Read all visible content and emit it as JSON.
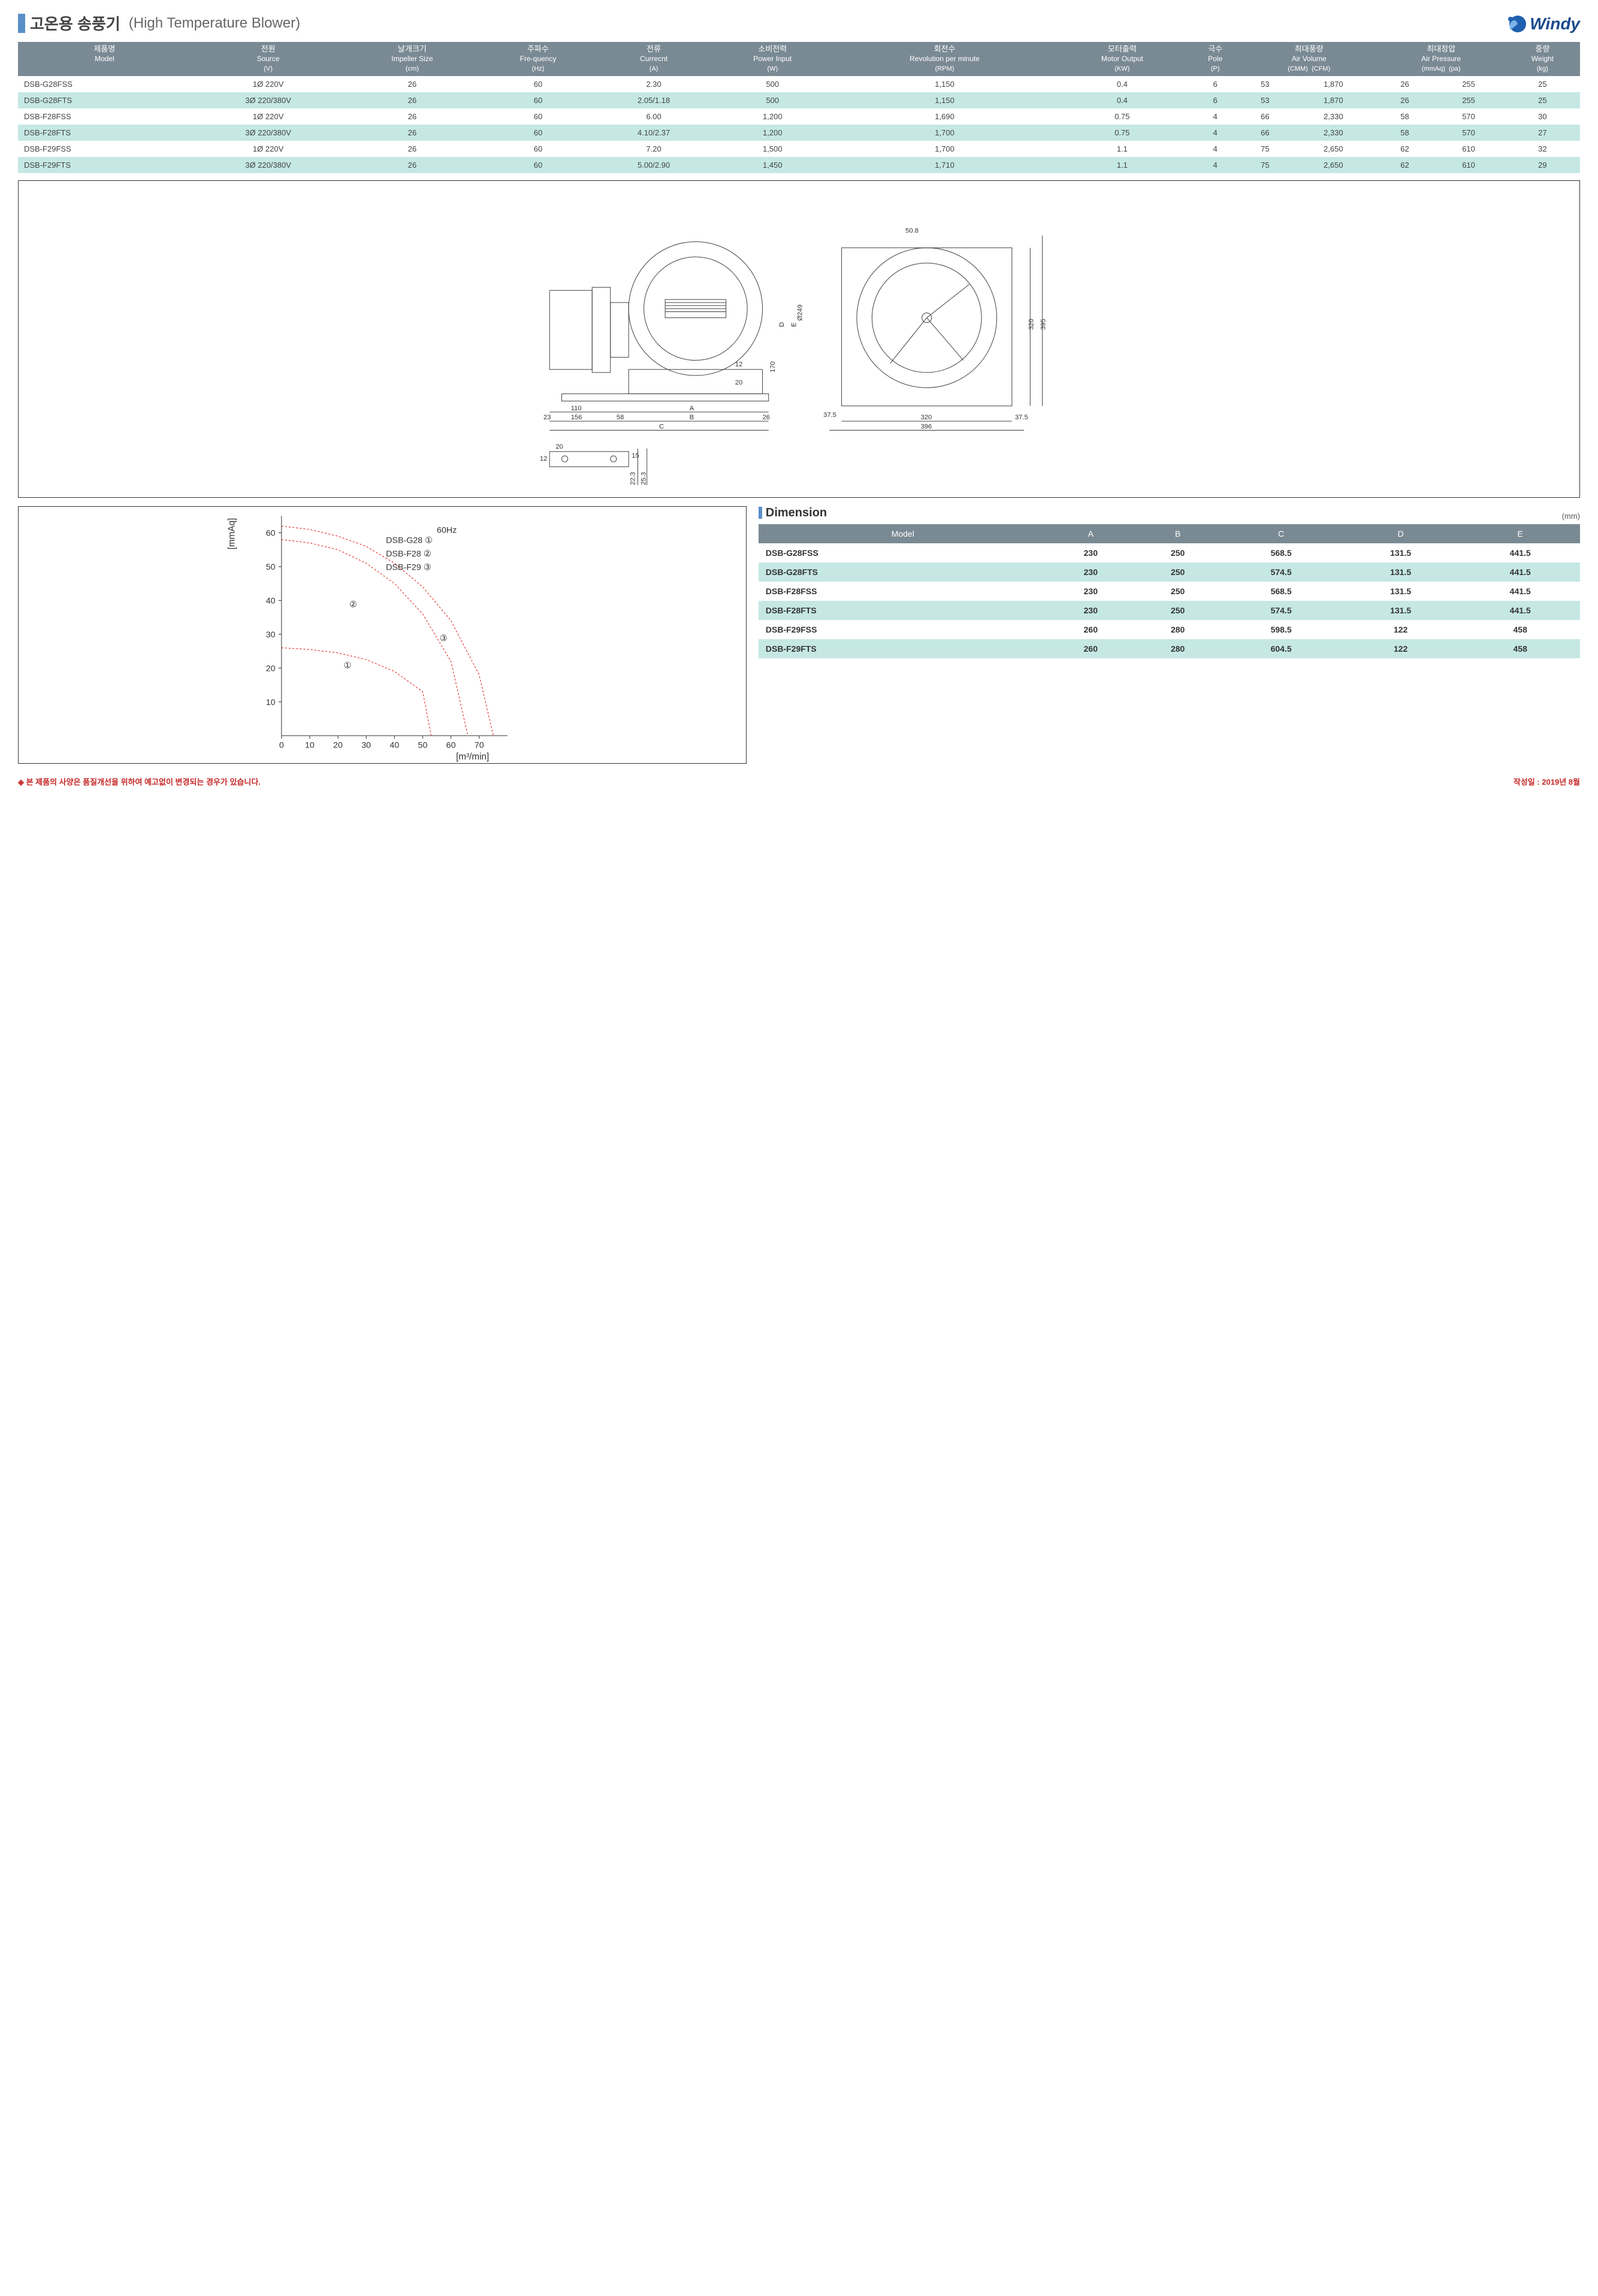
{
  "title": {
    "kr": "고온용 송풍기",
    "en": "(High Temperature Blower)"
  },
  "logo": {
    "text": "Windy",
    "accent_color": "#1a4b8c",
    "swirl_color": "#2060b0"
  },
  "spec_table": {
    "header_bg": "#7a8a94",
    "row_alt_bg": "#c5e8e4",
    "columns": [
      {
        "kr": "제품명",
        "en": "Model",
        "unit": ""
      },
      {
        "kr": "전원",
        "en": "Source",
        "unit": "(V)"
      },
      {
        "kr": "날개크기",
        "en": "Impeller Size",
        "unit": "(cm)"
      },
      {
        "kr": "주파수",
        "en": "Fre-quency",
        "unit": "(Hz)"
      },
      {
        "kr": "전류",
        "en": "Currecnt",
        "unit": "(A)"
      },
      {
        "kr": "소비전력",
        "en": "Power Input",
        "unit": "(W)"
      },
      {
        "kr": "회전수",
        "en": "Revolution per minute",
        "unit": "(RPM)"
      },
      {
        "kr": "모터출력",
        "en": "Motor Output",
        "unit": "(KW)"
      },
      {
        "kr": "극수",
        "en": "Pole",
        "unit": "(P)"
      },
      {
        "kr": "최대풍량",
        "en": "Air Volume",
        "sub": [
          "(CMM)",
          "(CFM)"
        ]
      },
      {
        "kr": "최대정압",
        "en": "Air Pressure",
        "sub": [
          "(mmAq)",
          "(pa)"
        ]
      },
      {
        "kr": "중량",
        "en": "Weight",
        "unit": "(kg)"
      }
    ],
    "rows": [
      [
        "DSB-G28FSS",
        "1Ø 220V",
        "26",
        "60",
        "2.30",
        "500",
        "1,150",
        "0.4",
        "6",
        "53",
        "1,870",
        "26",
        "255",
        "25"
      ],
      [
        "DSB-G28FTS",
        "3Ø 220/380V",
        "26",
        "60",
        "2.05/1.18",
        "500",
        "1,150",
        "0.4",
        "6",
        "53",
        "1,870",
        "26",
        "255",
        "25"
      ],
      [
        "DSB-F28FSS",
        "1Ø 220V",
        "26",
        "60",
        "6.00",
        "1,200",
        "1,690",
        "0.75",
        "4",
        "66",
        "2,330",
        "58",
        "570",
        "30"
      ],
      [
        "DSB-F28FTS",
        "3Ø 220/380V",
        "26",
        "60",
        "4.10/2.37",
        "1,200",
        "1,700",
        "0.75",
        "4",
        "66",
        "2,330",
        "58",
        "570",
        "27"
      ],
      [
        "DSB-F29FSS",
        "1Ø 220V",
        "26",
        "60",
        "7.20",
        "1,500",
        "1,700",
        "1.1",
        "4",
        "75",
        "2,650",
        "62",
        "610",
        "32"
      ],
      [
        "DSB-F29FTS",
        "3Ø 220/380V",
        "26",
        "60",
        "5.00/2.90",
        "1,450",
        "1,710",
        "1.1",
        "4",
        "75",
        "2,650",
        "62",
        "610",
        "29"
      ]
    ]
  },
  "diagram": {
    "labels": [
      "50.8",
      "Ø249",
      "320",
      "395",
      "37.5",
      "320",
      "396",
      "37.5",
      "23",
      "110",
      "156",
      "58",
      "A",
      "B",
      "C",
      "26",
      "12",
      "20",
      "170",
      "D",
      "E",
      "20",
      "15",
      "12",
      "22.3",
      "25.3"
    ]
  },
  "chart": {
    "title_freq": "60Hz",
    "legend": [
      {
        "label": "DSB-G28",
        "num": "①"
      },
      {
        "label": "DSB-F28",
        "num": "②"
      },
      {
        "label": "DSB-F29",
        "num": "③"
      }
    ],
    "x_label": "[m³/min]",
    "y_label": "[mmAq]",
    "x_ticks": [
      0,
      10,
      20,
      30,
      40,
      50,
      60,
      70
    ],
    "y_ticks": [
      10,
      20,
      30,
      40,
      50,
      60
    ],
    "xlim": [
      0,
      80
    ],
    "ylim": [
      0,
      65
    ],
    "curve_color": "#e53935",
    "curve_dash": "3,3",
    "line_width": 1.2,
    "curves": {
      "1": [
        [
          0,
          26
        ],
        [
          10,
          25.5
        ],
        [
          20,
          24.5
        ],
        [
          30,
          22.5
        ],
        [
          40,
          19
        ],
        [
          50,
          13
        ],
        [
          53,
          0
        ]
      ],
      "2": [
        [
          0,
          58
        ],
        [
          10,
          57
        ],
        [
          20,
          55
        ],
        [
          30,
          51
        ],
        [
          40,
          45
        ],
        [
          50,
          36
        ],
        [
          60,
          22
        ],
        [
          66,
          0
        ]
      ],
      "3": [
        [
          0,
          62
        ],
        [
          10,
          61
        ],
        [
          20,
          59
        ],
        [
          30,
          56
        ],
        [
          40,
          51
        ],
        [
          50,
          44
        ],
        [
          60,
          34
        ],
        [
          70,
          18
        ],
        [
          75,
          0
        ]
      ]
    },
    "curve_label_pos": {
      "1": [
        22,
        20
      ],
      "2": [
        24,
        38
      ],
      "3": [
        56,
        28
      ]
    }
  },
  "dimension": {
    "title": "Dimension",
    "unit": "(mm)",
    "columns": [
      "Model",
      "A",
      "B",
      "C",
      "D",
      "E"
    ],
    "rows": [
      [
        "DSB-G28FSS",
        "230",
        "250",
        "568.5",
        "131.5",
        "441.5"
      ],
      [
        "DSB-G28FTS",
        "230",
        "250",
        "574.5",
        "131.5",
        "441.5"
      ],
      [
        "DSB-F28FSS",
        "230",
        "250",
        "568.5",
        "131.5",
        "441.5"
      ],
      [
        "DSB-F28FTS",
        "230",
        "250",
        "574.5",
        "131.5",
        "441.5"
      ],
      [
        "DSB-F29FSS",
        "260",
        "280",
        "598.5",
        "122",
        "458"
      ],
      [
        "DSB-F29FTS",
        "260",
        "280",
        "604.5",
        "122",
        "458"
      ]
    ]
  },
  "footer": {
    "note": "◈ 본 제품의 사양은 품질개선을 위하여 예고없이 변경되는 경우가 있습니다.",
    "date": "작성일 : 2019년 8월"
  }
}
